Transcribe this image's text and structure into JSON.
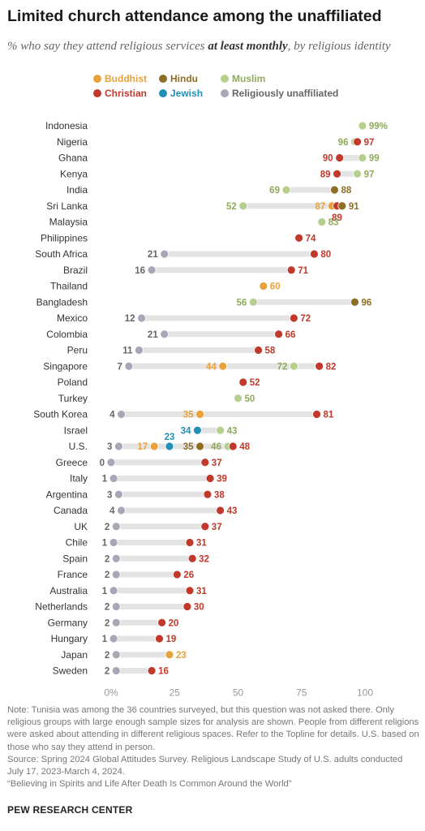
{
  "title": "Limited church attendance among the unaffiliated",
  "subtitle": {
    "before": "% who say they attend religious services ",
    "emphasis": "at least monthly",
    "after": ", by religious identity"
  },
  "notes": {
    "note": "Note: Tunisia was among the 36 countries surveyed, but this question was not asked there. Only religious groups with large enough sample sizes for analysis are shown. People from different religions were asked about attending in different religious spaces. Refer to the Topline for details. U.S. based on those who say they attend in person.",
    "source": "Source: Spring 2024 Global Attitudes Survey. Religious Landscape Study of U.S. adults conducted July 17, 2023-March 4, 2024.",
    "report": "“Believing in Spirits and Life After Death Is Common Around the World”"
  },
  "brand": "PEW RESEARCH CENTER",
  "chart_data": {
    "type": "dot-plot",
    "xlim": [
      0,
      100
    ],
    "xticks": [
      0,
      25,
      50,
      75,
      100
    ],
    "xtick_labels": [
      "0%",
      "25",
      "50",
      "75",
      "100"
    ],
    "legend_placement": "top",
    "series": [
      {
        "key": "buddhist",
        "name": "Buddhist",
        "color": "#e9a23b"
      },
      {
        "key": "hindu",
        "name": "Hindu",
        "color": "#8d6e25"
      },
      {
        "key": "muslim",
        "name": "Muslim",
        "color": "#b5cf8e"
      },
      {
        "key": "christian",
        "name": "Christian",
        "color": "#c0392b"
      },
      {
        "key": "jewish",
        "name": "Jewish",
        "color": "#2190b9"
      },
      {
        "key": "unaffiliated",
        "name": "Religiously unaffiliated",
        "color": "#aaa5b7"
      }
    ],
    "label_colors": {
      "buddhist": "#e9a23b",
      "hindu": "#8d6e25",
      "muslim": "#8faa5c",
      "christian": "#c0392b",
      "jewish": "#2190b9",
      "unaffiliated": "#666666"
    },
    "countries": [
      {
        "name": "Indonesia",
        "values": {
          "muslim": 99
        }
      },
      {
        "name": "Nigeria",
        "values": {
          "muslim": 96,
          "christian": 97
        }
      },
      {
        "name": "Ghana",
        "values": {
          "christian": 90,
          "muslim": 99
        }
      },
      {
        "name": "Kenya",
        "values": {
          "christian": 89,
          "muslim": 97
        }
      },
      {
        "name": "India",
        "values": {
          "muslim": 69,
          "hindu": 88
        }
      },
      {
        "name": "Sri Lanka",
        "values": {
          "muslim": 52,
          "buddhist": 87,
          "christian": 89,
          "hindu": 91
        }
      },
      {
        "name": "Malaysia",
        "values": {
          "muslim": 83
        }
      },
      {
        "name": "Philippines",
        "values": {
          "christian": 74
        }
      },
      {
        "name": "South Africa",
        "values": {
          "unaffiliated": 21,
          "christian": 80
        }
      },
      {
        "name": "Brazil",
        "values": {
          "unaffiliated": 16,
          "christian": 71
        }
      },
      {
        "name": "Thailand",
        "values": {
          "buddhist": 60
        }
      },
      {
        "name": "Bangladesh",
        "values": {
          "muslim": 56,
          "hindu": 96
        }
      },
      {
        "name": "Mexico",
        "values": {
          "unaffiliated": 12,
          "christian": 72
        }
      },
      {
        "name": "Colombia",
        "values": {
          "unaffiliated": 21,
          "christian": 66
        }
      },
      {
        "name": "Peru",
        "values": {
          "unaffiliated": 11,
          "christian": 58
        }
      },
      {
        "name": "Singapore",
        "values": {
          "unaffiliated": 7,
          "buddhist": 44,
          "muslim": 72,
          "christian": 82
        }
      },
      {
        "name": "Poland",
        "values": {
          "christian": 52
        }
      },
      {
        "name": "Turkey",
        "values": {
          "muslim": 50
        }
      },
      {
        "name": "South Korea",
        "values": {
          "unaffiliated": 4,
          "buddhist": 35,
          "christian": 81
        }
      },
      {
        "name": "Israel",
        "values": {
          "jewish": 34,
          "muslim": 43
        }
      },
      {
        "name": "U.S.",
        "values": {
          "unaffiliated": 3,
          "buddhist": 17,
          "jewish": 23,
          "hindu": 35,
          "muslim": 46,
          "christian": 48
        }
      },
      {
        "name": "Greece",
        "values": {
          "unaffiliated": 0,
          "christian": 37
        }
      },
      {
        "name": "Italy",
        "values": {
          "unaffiliated": 1,
          "christian": 39
        }
      },
      {
        "name": "Argentina",
        "values": {
          "unaffiliated": 3,
          "christian": 38
        }
      },
      {
        "name": "Canada",
        "values": {
          "unaffiliated": 4,
          "christian": 43
        }
      },
      {
        "name": "UK",
        "values": {
          "unaffiliated": 2,
          "christian": 37
        }
      },
      {
        "name": "Chile",
        "values": {
          "unaffiliated": 1,
          "christian": 31
        }
      },
      {
        "name": "Spain",
        "values": {
          "unaffiliated": 2,
          "christian": 32
        }
      },
      {
        "name": "France",
        "values": {
          "unaffiliated": 2,
          "christian": 26
        }
      },
      {
        "name": "Australia",
        "values": {
          "unaffiliated": 1,
          "christian": 31
        }
      },
      {
        "name": "Netherlands",
        "values": {
          "unaffiliated": 2,
          "christian": 30
        }
      },
      {
        "name": "Germany",
        "values": {
          "unaffiliated": 2,
          "christian": 20
        }
      },
      {
        "name": "Hungary",
        "values": {
          "unaffiliated": 1,
          "christian": 19
        }
      },
      {
        "name": "Japan",
        "values": {
          "unaffiliated": 2,
          "buddhist": 23
        }
      },
      {
        "name": "Sweden",
        "values": {
          "unaffiliated": 2,
          "christian": 16
        }
      }
    ]
  }
}
